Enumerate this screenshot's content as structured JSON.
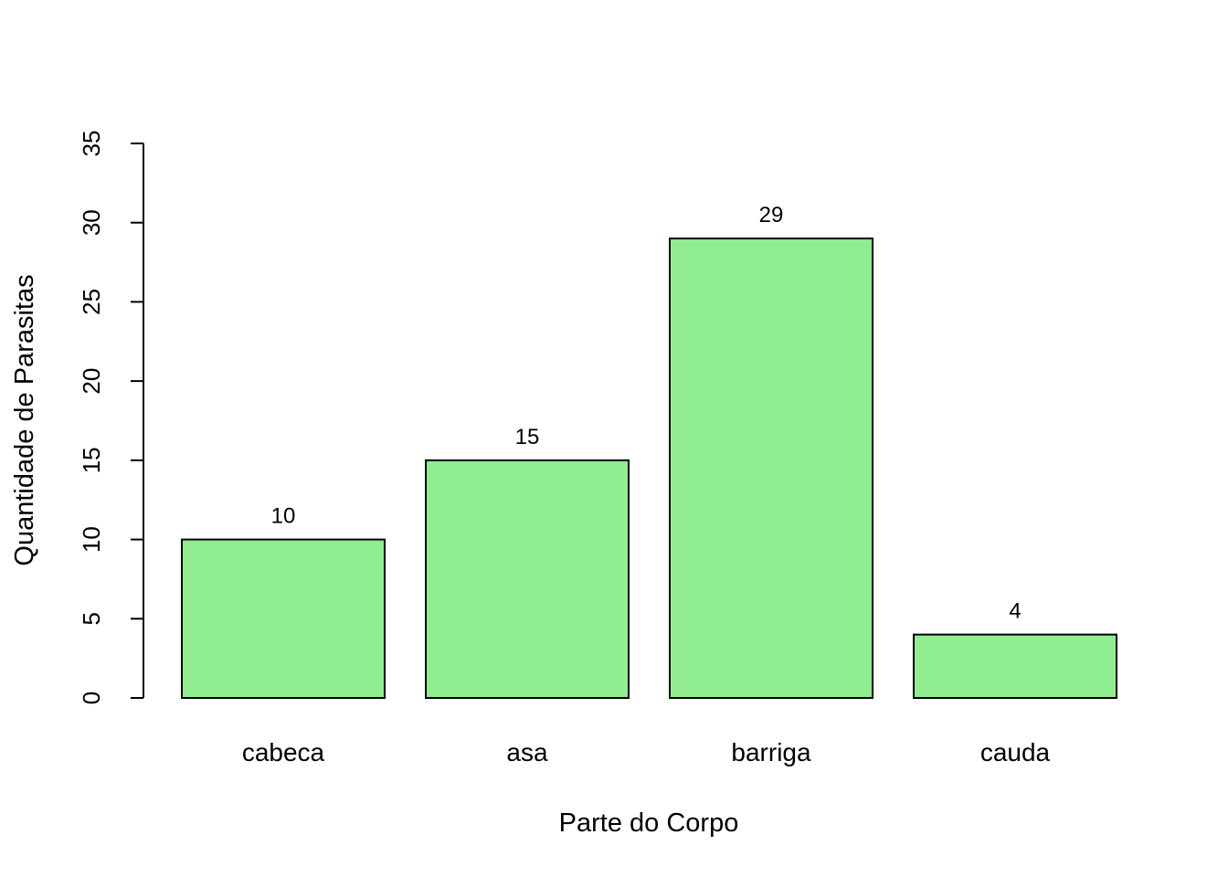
{
  "chart_data": {
    "type": "bar",
    "categories": [
      "cabeca",
      "asa",
      "barriga",
      "cauda"
    ],
    "values": [
      10,
      15,
      29,
      4
    ],
    "data_labels": [
      "10",
      "15",
      "29",
      "4"
    ],
    "xlabel": "Parte do Corpo",
    "ylabel": "Quantidade de Parasitas",
    "ylim": [
      0,
      35
    ],
    "yticks": [
      0,
      5,
      10,
      15,
      20,
      25,
      30,
      35
    ],
    "ytick_labels": [
      "0",
      "5",
      "10",
      "15",
      "20",
      "25",
      "30",
      "35"
    ],
    "grid": false,
    "legend": "none",
    "bar_color": "#90EE90",
    "bar_edge_color": "#000000"
  }
}
